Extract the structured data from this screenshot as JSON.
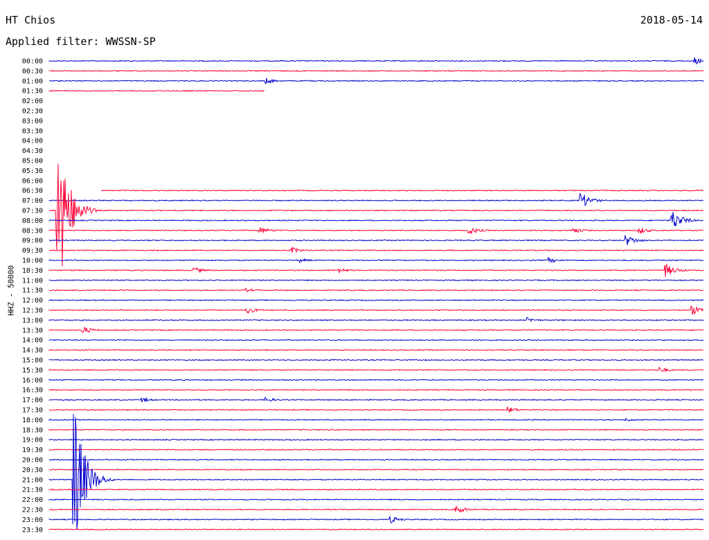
{
  "header": {
    "station": "HT Chios",
    "date": "2018-05-14",
    "filter": "Applied filter: WWSSN-SP"
  },
  "colors": {
    "blue": "#0000cc",
    "red": "#ff0033"
  },
  "chart_data": {
    "type": "line",
    "title": "HT Chios",
    "subtitle": "Applied filter: WWSSN-SP",
    "ylabel": "HHZ - 50000",
    "trace_labels": [
      "00:00",
      "00:30",
      "01:00",
      "01:30",
      "02:00",
      "02:30",
      "03:00",
      "03:30",
      "04:00",
      "04:30",
      "05:00",
      "05:30",
      "06:00",
      "06:30",
      "07:00",
      "07:30",
      "08:00",
      "08:30",
      "09:00",
      "09:30",
      "10:00",
      "10:30",
      "11:00",
      "11:30",
      "12:00",
      "12:30",
      "13:00",
      "13:30",
      "14:00",
      "14:30",
      "15:00",
      "15:30",
      "16:00",
      "16:30",
      "17:00",
      "17:30",
      "18:00",
      "18:30",
      "19:00",
      "19:30",
      "20:00",
      "20:30",
      "21:00",
      "21:30",
      "22:00",
      "22:30",
      "23:00",
      "23:30"
    ],
    "trace_colors": [
      "blue",
      "red"
    ],
    "missing_traces": [
      "02:00",
      "02:30",
      "03:00",
      "03:30",
      "04:00",
      "04:30",
      "05:00",
      "05:30",
      "06:00"
    ],
    "partial_traces": [
      {
        "label": "01:30",
        "end_fraction": 0.33
      },
      {
        "label": "06:30",
        "start_fraction": 0.08
      }
    ],
    "events": [
      {
        "trace": "00:00",
        "x": 0.985,
        "amp": 6
      },
      {
        "trace": "01:00",
        "x": 0.33,
        "amp": 5
      },
      {
        "trace": "07:30",
        "x": 0.01,
        "amp": 160
      },
      {
        "trace": "07:00",
        "x": 0.81,
        "amp": 14
      },
      {
        "trace": "08:00",
        "x": 0.95,
        "amp": 18
      },
      {
        "trace": "08:30",
        "x": 0.32,
        "amp": 6
      },
      {
        "trace": "08:30",
        "x": 0.64,
        "amp": 7
      },
      {
        "trace": "08:30",
        "x": 0.8,
        "amp": 5
      },
      {
        "trace": "08:30",
        "x": 0.9,
        "amp": 6
      },
      {
        "trace": "09:00",
        "x": 0.88,
        "amp": 9
      },
      {
        "trace": "09:30",
        "x": 0.37,
        "amp": 5
      },
      {
        "trace": "10:00",
        "x": 0.38,
        "amp": 4
      },
      {
        "trace": "10:00",
        "x": 0.76,
        "amp": 5
      },
      {
        "trace": "10:30",
        "x": 0.22,
        "amp": 5
      },
      {
        "trace": "10:30",
        "x": 0.44,
        "amp": 5
      },
      {
        "trace": "10:30",
        "x": 0.94,
        "amp": 11
      },
      {
        "trace": "11:30",
        "x": 0.3,
        "amp": 3
      },
      {
        "trace": "12:30",
        "x": 0.3,
        "amp": 6
      },
      {
        "trace": "12:30",
        "x": 0.98,
        "amp": 9
      },
      {
        "trace": "13:00",
        "x": 0.73,
        "amp": 4
      },
      {
        "trace": "13:30",
        "x": 0.05,
        "amp": 6
      },
      {
        "trace": "15:30",
        "x": 0.93,
        "amp": 5
      },
      {
        "trace": "17:00",
        "x": 0.14,
        "amp": 4
      },
      {
        "trace": "17:00",
        "x": 0.33,
        "amp": 4
      },
      {
        "trace": "17:30",
        "x": 0.7,
        "amp": 5
      },
      {
        "trace": "18:00",
        "x": 0.88,
        "amp": 3
      },
      {
        "trace": "21:00",
        "x": 0.035,
        "amp": 140
      },
      {
        "trace": "22:30",
        "x": 0.62,
        "amp": 7
      },
      {
        "trace": "23:00",
        "x": 0.52,
        "amp": 6
      }
    ]
  }
}
